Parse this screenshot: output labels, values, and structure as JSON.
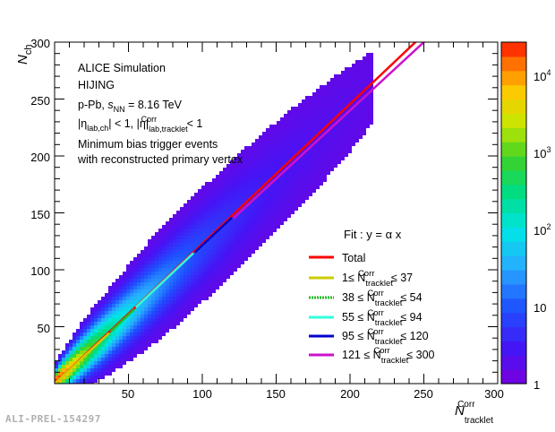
{
  "chart_data": {
    "type": "heatmap",
    "xlabel": {
      "main": "N",
      "sup": "Corr",
      "sub": "tracklet"
    },
    "ylabel": {
      "main": "N",
      "sub": "ch"
    },
    "xlim": [
      0,
      300
    ],
    "ylim": [
      0,
      300
    ],
    "x_ticks": [
      "50",
      "100",
      "150",
      "200",
      "250",
      "300"
    ],
    "y_ticks": [
      "50",
      "100",
      "150",
      "200",
      "250",
      "300"
    ],
    "colorbar": {
      "scale": "log",
      "min": 1,
      "max": 20000,
      "tick_base": "10",
      "ticks": [
        "1",
        "10",
        "10",
        "10",
        "10"
      ],
      "tick_exps": [
        "",
        "",
        "2",
        "3",
        "4"
      ]
    },
    "density_model": {
      "peak_count": 20000,
      "slope": 1.2,
      "spread_at_100": 18
    },
    "annotations": {
      "line1": "ALICE Simulation",
      "line2": "HIJING",
      "line3_pre": "p-Pb, ",
      "line3_sqrt": "s",
      "line3_sub": "NN",
      "line3_post": " = 8.16 TeV",
      "line4_a": "|η",
      "line4_a_sub": "lab,ch",
      "line4_b": "| < 1, |η|",
      "line4_b_sup": "Corr",
      "line4_b_sub": "lab,tracklet",
      "line4_c": " < 1",
      "line5": "Minimum bias trigger events",
      "line6": "with reconstructed primary vertex"
    },
    "legend": {
      "title": "Fit : y = α x",
      "entries": [
        {
          "label": "Total",
          "color": "#ff0000",
          "pattern": "solid"
        },
        {
          "pre": "1≤ N",
          "sup": "Corr",
          "sub": "tracklet",
          "post": " ≤ 37",
          "color": "#cccc00",
          "pattern": "solid"
        },
        {
          "pre": "38  ≤ N",
          "sup": "Corr",
          "sub": "tracklet",
          "post": " ≤ 54",
          "color": "#22bb22",
          "pattern": "dashed"
        },
        {
          "pre": "55  ≤ N",
          "sup": "Corr",
          "sub": "tracklet",
          "post": " ≤ 94",
          "color": "#33ffdd",
          "pattern": "solid"
        },
        {
          "pre": "95  ≤ N",
          "sup": "Corr",
          "sub": "tracklet",
          "post": " ≤ 120",
          "color": "#0000cc",
          "pattern": "solid"
        },
        {
          "pre": "121 ≤ N",
          "sup": "Corr",
          "sub": "tracklet",
          "post": " ≤ 300",
          "color": "#cc11cc",
          "pattern": "solid"
        }
      ]
    },
    "fits": [
      {
        "name": "Total",
        "alpha": 1.228,
        "x_range": [
          0,
          300
        ],
        "color": "#ff0000"
      },
      {
        "name": "1-37",
        "alpha": 1.2,
        "x_range": [
          0,
          37
        ],
        "color": "#cccc00"
      },
      {
        "name": "38-54",
        "alpha": 1.21,
        "x_range": [
          38,
          54
        ],
        "color": "#22bb22"
      },
      {
        "name": "55-94",
        "alpha": 1.22,
        "x_range": [
          55,
          94
        ],
        "color": "#33ffdd"
      },
      {
        "name": "95-120",
        "alpha": 1.215,
        "x_range": [
          95,
          120
        ],
        "color": "#0000cc"
      },
      {
        "name": "121-300",
        "alpha": 1.2,
        "x_range": [
          121,
          300
        ],
        "color": "#cc11cc"
      }
    ]
  },
  "footer": "ALI-PREL-154297"
}
